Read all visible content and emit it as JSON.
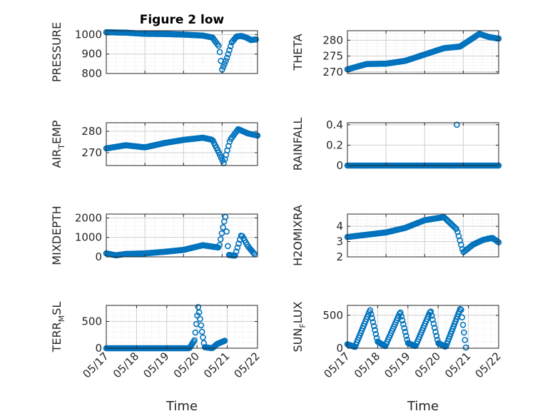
{
  "window": {
    "title": "Figure 2 low"
  },
  "colors": {
    "marker": "#0072BD",
    "axis": "#262626",
    "grid_major": "#cfcfcf",
    "grid_minor": "#e6e6e6"
  },
  "chart_data": [
    {
      "type": "scatter",
      "panel": "top-left",
      "title": "Figure 2 low",
      "ylabel": "PRESSURE",
      "xlabel": "",
      "xlim": [
        "05/17",
        "05/20 22:00"
      ],
      "ylim": [
        800,
        1020
      ],
      "yticks": [
        800,
        900,
        1000
      ],
      "xticks": [],
      "grid": true,
      "minor_grid": true,
      "keypoints": [
        [
          "05/17 00:00",
          1012
        ],
        [
          "05/17 12:00",
          1010
        ],
        [
          "05/18 00:00",
          1004
        ],
        [
          "05/18 12:00",
          1003
        ],
        [
          "05/19 00:00",
          1000
        ],
        [
          "05/19 12:00",
          995
        ],
        [
          "05/19 18:00",
          985
        ],
        [
          "05/19 22:00",
          940
        ],
        [
          "05/20 00:00",
          820
        ],
        [
          "05/20 03:00",
          880
        ],
        [
          "05/20 06:00",
          960
        ],
        [
          "05/20 09:00",
          990
        ],
        [
          "05/20 12:00",
          993
        ],
        [
          "05/20 15:00",
          985
        ],
        [
          "05/20 18:00",
          972
        ],
        [
          "05/20 21:00",
          975
        ]
      ]
    },
    {
      "type": "scatter",
      "panel": "top-right",
      "title": "",
      "ylabel": "THETA",
      "xlabel": "",
      "xlim": [
        "05/17",
        "05/20 22:00"
      ],
      "ylim": [
        269.5,
        283
      ],
      "yticks": [
        270,
        275,
        280
      ],
      "xticks": [],
      "grid": true,
      "minor_grid": true,
      "keypoints": [
        [
          "05/17 00:00",
          270.8
        ],
        [
          "05/17 12:00",
          272.5
        ],
        [
          "05/18 00:00",
          272.6
        ],
        [
          "05/18 12:00",
          273.5
        ],
        [
          "05/19 00:00",
          275.5
        ],
        [
          "05/19 12:00",
          277.5
        ],
        [
          "05/19 22:00",
          278
        ],
        [
          "05/20 04:00",
          280
        ],
        [
          "05/20 10:00",
          282
        ],
        [
          "05/20 16:00",
          281
        ],
        [
          "05/20 22:00",
          280.5
        ]
      ]
    },
    {
      "type": "scatter",
      "panel": "row2-left",
      "title": "",
      "ylabel": "AIR_TEMP",
      "xlabel": "",
      "xlim": [
        "05/17",
        "05/20 22:00"
      ],
      "ylim": [
        264,
        284
      ],
      "yticks": [
        270,
        280
      ],
      "xticks": [],
      "grid": true,
      "minor_grid": true,
      "keypoints": [
        [
          "05/17 00:00",
          272
        ],
        [
          "05/17 12:00",
          273.5
        ],
        [
          "05/18 00:00",
          272.5
        ],
        [
          "05/18 12:00",
          274.5
        ],
        [
          "05/19 00:00",
          276
        ],
        [
          "05/19 12:00",
          277
        ],
        [
          "05/19 18:00",
          276
        ],
        [
          "05/19 22:00",
          270
        ],
        [
          "05/20 01:00",
          265
        ],
        [
          "05/20 05:00",
          276
        ],
        [
          "05/20 10:00",
          281
        ],
        [
          "05/20 16:00",
          279
        ],
        [
          "05/20 22:00",
          278
        ]
      ]
    },
    {
      "type": "scatter",
      "panel": "row2-right",
      "title": "",
      "ylabel": "RAINFALL",
      "xlabel": "",
      "xlim": [
        "05/17",
        "05/20 22:00"
      ],
      "ylim": [
        0,
        0.42
      ],
      "yticks": [
        0,
        0.2,
        0.4
      ],
      "xticks": [],
      "grid": true,
      "minor_grid": false,
      "keypoints": [
        [
          "05/17 00:00",
          0
        ],
        [
          "05/20 22:00",
          0
        ]
      ],
      "spikes": [
        [
          "05/19 20:00",
          0.4
        ]
      ]
    },
    {
      "type": "scatter",
      "panel": "row3-left",
      "title": "",
      "ylabel": "MIXDEPTH",
      "xlabel": "",
      "xlim": [
        "05/17",
        "05/20 22:00"
      ],
      "ylim": [
        0,
        2200
      ],
      "yticks": [
        0,
        1000,
        2000
      ],
      "xticks": [],
      "grid": true,
      "minor_grid": true,
      "keypoints": [
        [
          "05/17 00:00",
          180
        ],
        [
          "05/17 06:00",
          80
        ],
        [
          "05/17 12:00",
          150
        ],
        [
          "05/18 00:00",
          180
        ],
        [
          "05/18 12:00",
          260
        ],
        [
          "05/19 00:00",
          360
        ],
        [
          "05/19 12:00",
          600
        ],
        [
          "05/19 22:00",
          480
        ],
        [
          "05/20 02:00",
          2100
        ],
        [
          "05/20 04:00",
          100
        ],
        [
          "05/20 08:00",
          60
        ],
        [
          "05/20 12:00",
          1150
        ],
        [
          "05/20 16:00",
          550
        ],
        [
          "05/20 20:00",
          160
        ]
      ]
    },
    {
      "type": "scatter",
      "panel": "row3-right",
      "title": "",
      "ylabel": "H2OMIXRA",
      "xlabel": "",
      "xlim": [
        "05/17",
        "05/20 22:00"
      ],
      "ylim": [
        2,
        4.8
      ],
      "yticks": [
        2,
        3,
        4
      ],
      "xticks": [],
      "grid": true,
      "minor_grid": true,
      "keypoints": [
        [
          "05/17 00:00",
          3.3
        ],
        [
          "05/17 12:00",
          3.45
        ],
        [
          "05/18 00:00",
          3.6
        ],
        [
          "05/18 12:00",
          3.9
        ],
        [
          "05/19 00:00",
          4.4
        ],
        [
          "05/19 12:00",
          4.6
        ],
        [
          "05/19 20:00",
          3.8
        ],
        [
          "05/20 00:00",
          2.3
        ],
        [
          "05/20 06:00",
          2.8
        ],
        [
          "05/20 12:00",
          3.1
        ],
        [
          "05/20 18:00",
          3.25
        ],
        [
          "05/20 22:00",
          2.95
        ]
      ]
    },
    {
      "type": "scatter",
      "panel": "bottom-left",
      "title": "",
      "ylabel": "TERR_MSL",
      "xlabel": "Time",
      "xlim": [
        "05/17",
        "05/22"
      ],
      "ylim": [
        0,
        800
      ],
      "yticks": [
        0,
        500
      ],
      "xticks": [
        "05/17",
        "05/18",
        "05/19",
        "05/20",
        "05/21",
        "05/22"
      ],
      "grid": true,
      "minor_grid": true,
      "keypoints": [
        [
          "05/17 00:00",
          0
        ],
        [
          "05/19 18:00",
          0
        ],
        [
          "05/19 22:00",
          150
        ],
        [
          "05/20 01:00",
          780
        ],
        [
          "05/20 04:00",
          300
        ],
        [
          "05/20 06:00",
          20
        ],
        [
          "05/20 12:00",
          0
        ],
        [
          "05/20 16:00",
          80
        ],
        [
          "05/20 22:00",
          140
        ]
      ]
    },
    {
      "type": "scatter",
      "panel": "bottom-right",
      "title": "",
      "ylabel": "SUN_FLUX",
      "xlabel": "Time",
      "xlim": [
        "05/17",
        "05/22"
      ],
      "ylim": [
        0,
        650
      ],
      "yticks": [
        0,
        500
      ],
      "xticks": [
        "05/17",
        "05/18",
        "05/19",
        "05/20",
        "05/21",
        "05/22"
      ],
      "grid": true,
      "minor_grid": true,
      "keypoints": [
        [
          "05/17 00:00",
          60
        ],
        [
          "05/17 06:00",
          20
        ],
        [
          "05/17 18:00",
          580
        ],
        [
          "05/18 00:00",
          100
        ],
        [
          "05/18 06:00",
          30
        ],
        [
          "05/18 18:00",
          550
        ],
        [
          "05/19 00:00",
          80
        ],
        [
          "05/19 06:00",
          30
        ],
        [
          "05/19 18:00",
          570
        ],
        [
          "05/20 00:00",
          80
        ],
        [
          "05/20 06:00",
          20
        ],
        [
          "05/20 18:00",
          620
        ],
        [
          "05/20 22:00",
          10
        ]
      ]
    }
  ]
}
